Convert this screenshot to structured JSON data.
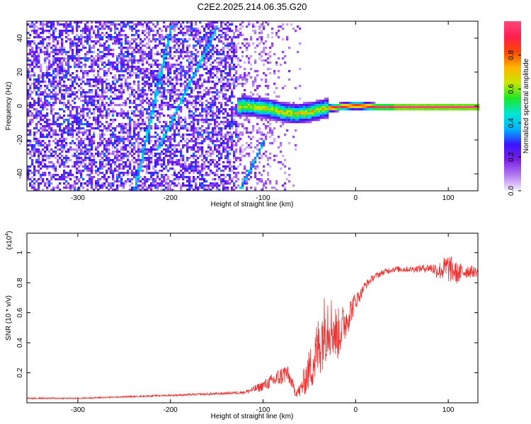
{
  "title": "C2E2.2025.214.06.35.G20",
  "chart_data": [
    {
      "type": "heatmap",
      "xlabel": "Height of straight line (km)",
      "ylabel": "Frequency (Hz)",
      "xlim": [
        -355,
        132
      ],
      "ylim": [
        -50,
        50
      ],
      "x_ticks": [
        -300,
        -200,
        -100,
        0,
        100
      ],
      "x_tick_labels": [
        "-300",
        "-200",
        "-100",
        "0",
        "100"
      ],
      "y_ticks": [
        -40,
        -20,
        0,
        20,
        40
      ],
      "y_tick_labels": [
        "-40",
        "-20",
        "0",
        "20",
        "40"
      ],
      "colorbar": {
        "label": "Normalized spectral amplitude",
        "range": [
          0,
          1
        ],
        "ticks": [
          0,
          0.2,
          0.4,
          0.6,
          0.8
        ],
        "tick_labels": [
          "0.0",
          "0.2",
          "0.4",
          "0.6",
          "0.8"
        ],
        "colors": [
          "#f4f0fc",
          "#b37cf2",
          "#7a1fe8",
          "#3a14ff",
          "#00b4ff",
          "#00e6d2",
          "#1ee628",
          "#c8e600",
          "#ffb400",
          "#ff4600",
          "#ff1e50",
          "#ff4678"
        ]
      },
      "signal_track": [
        {
          "x": -125,
          "y": 1
        },
        {
          "x": -110,
          "y": 0
        },
        {
          "x": -95,
          "y": -1
        },
        {
          "x": -80,
          "y": -3
        },
        {
          "x": -65,
          "y": -4
        },
        {
          "x": -50,
          "y": -3
        },
        {
          "x": -35,
          "y": -1
        },
        {
          "x": -20,
          "y": 0
        },
        {
          "x": 0,
          "y": 1
        },
        {
          "x": 20,
          "y": 0
        },
        {
          "x": 60,
          "y": 0
        },
        {
          "x": 130,
          "y": 0
        }
      ],
      "oblique_traces": [
        {
          "x0": -150,
          "y0": 48,
          "x1": -215,
          "y1": -25
        },
        {
          "x0": -200,
          "y0": 48,
          "x1": -240,
          "y1": -50
        },
        {
          "x0": -100,
          "y0": -20,
          "x1": -125,
          "y1": -48
        }
      ]
    },
    {
      "type": "line",
      "xlabel": "Height of straight line (km)",
      "ylabel": "SNR (10 * v/v)",
      "y_multiplier": "(x10",
      "y_multiplier_exp": "4",
      "y_multiplier_close": ")",
      "xlim": [
        -355,
        132
      ],
      "ylim": [
        0,
        1.13
      ],
      "x_ticks": [
        -300,
        -200,
        -100,
        0,
        100
      ],
      "x_tick_labels": [
        "-300",
        "-200",
        "-100",
        "0",
        "100"
      ],
      "y_ticks": [
        0.2,
        0.4,
        0.6,
        0.8,
        1.0
      ],
      "y_tick_labels": [
        "0.2",
        "0.4",
        "0.6",
        "0.8",
        "1"
      ],
      "color": "#ee3333",
      "series": [
        {
          "x": [
            -355,
            -300,
            -250,
            -200,
            -150,
            -120,
            -105,
            -95,
            -85,
            -75,
            -70,
            -65,
            -60,
            -55,
            -50,
            -45,
            -40,
            -35,
            -30,
            -25,
            -20,
            -15,
            -10,
            -5,
            0,
            5,
            10,
            20,
            30,
            40,
            60,
            80,
            90,
            100,
            110,
            120,
            132
          ],
          "y": [
            0.03,
            0.03,
            0.04,
            0.05,
            0.06,
            0.07,
            0.1,
            0.13,
            0.16,
            0.2,
            0.15,
            0.07,
            0.08,
            0.15,
            0.22,
            0.28,
            0.38,
            0.47,
            0.55,
            0.5,
            0.45,
            0.5,
            0.55,
            0.62,
            0.68,
            0.72,
            0.78,
            0.84,
            0.87,
            0.89,
            0.89,
            0.9,
            0.88,
            0.9,
            0.86,
            0.88,
            0.87
          ],
          "spread": [
            0.005,
            0.005,
            0.005,
            0.006,
            0.008,
            0.01,
            0.03,
            0.04,
            0.06,
            0.07,
            0.04,
            0.03,
            0.05,
            0.1,
            0.14,
            0.18,
            0.22,
            0.24,
            0.24,
            0.2,
            0.18,
            0.15,
            0.12,
            0.09,
            0.06,
            0.04,
            0.03,
            0.02,
            0.02,
            0.02,
            0.02,
            0.03,
            0.06,
            0.1,
            0.07,
            0.05,
            0.03
          ]
        }
      ]
    }
  ]
}
